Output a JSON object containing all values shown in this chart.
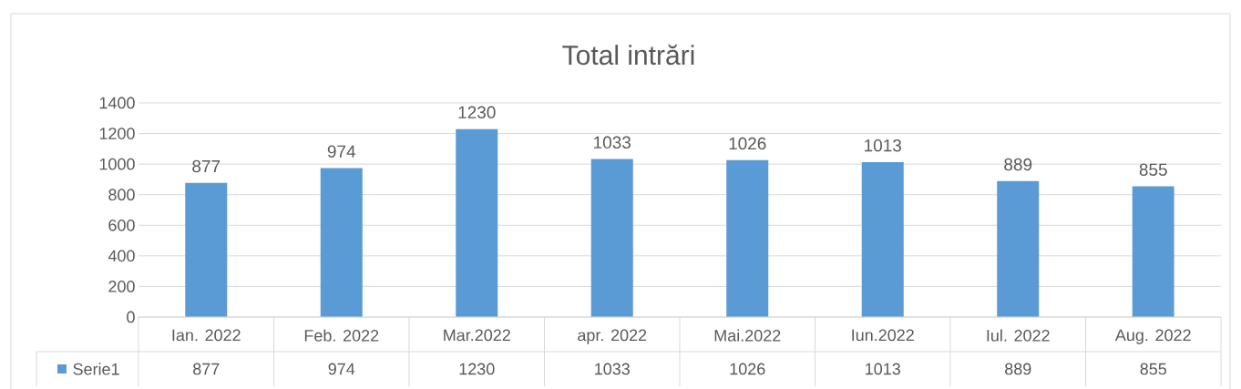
{
  "chart_data": {
    "type": "bar",
    "title": "Total intrări",
    "categories": [
      "Ian. 2022",
      "Feb. 2022",
      "Mar.2022",
      "apr. 2022",
      "Mai.2022",
      "Iun.2022",
      "Iul. 2022",
      "Aug. 2022"
    ],
    "series": [
      {
        "name": "Serie1",
        "color": "#5b9bd5",
        "values": [
          877,
          974,
          1230,
          1033,
          1026,
          1013,
          889,
          855
        ],
        "value_labels": [
          "877",
          "974",
          "1230",
          "1033",
          "1026",
          "1013",
          "889",
          "855"
        ]
      }
    ],
    "ylim": [
      0,
      1400
    ],
    "yticks": [
      0,
      200,
      400,
      600,
      800,
      1000,
      1200,
      1400
    ],
    "annotations": [
      "877",
      "974",
      "1230",
      "1033",
      "1026",
      "1013",
      "889",
      "855"
    ],
    "grid": "y",
    "data_labels": true,
    "legend": "bottom"
  }
}
